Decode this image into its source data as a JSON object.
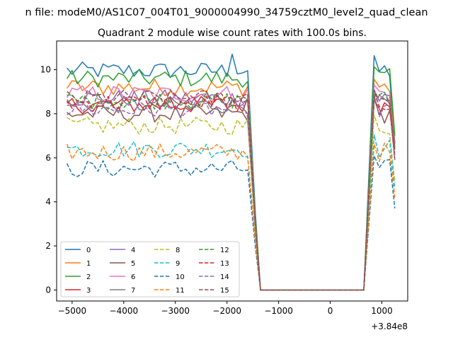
{
  "chart_data": {
    "type": "line",
    "suptitle": "n file: modeM0/AS1C07_004T01_9000004990_34759cztM0_level2_quad_clean",
    "title": "Quadrant 2 module wise count rates with 100.0s bins.",
    "xlabel": "",
    "ylabel": "",
    "x_offset_label": "+3.84e8",
    "xlim": [
      -5300,
      1500
    ],
    "ylim": [
      -0.5,
      11.3
    ],
    "x_ticks": [
      -5000,
      -4000,
      -3000,
      -2000,
      -1000,
      0,
      1000
    ],
    "x_tick_labels": [
      "−5000",
      "−4000",
      "−3000",
      "−2000",
      "−1000",
      "0",
      "1000"
    ],
    "y_ticks": [
      0,
      2,
      4,
      6,
      8,
      10
    ],
    "y_tick_labels": [
      "0",
      "2",
      "4",
      "6",
      "8",
      "10"
    ],
    "grid": false,
    "legend_position": "lower-left",
    "legend_columns": 4,
    "series": [
      {
        "name": "0",
        "color": "#1f77b4",
        "dashed": false,
        "level": 9.95,
        "end": 6.6,
        "peak": 10.7
      },
      {
        "name": "1",
        "color": "#ff7f0e",
        "dashed": false,
        "level": 9.2,
        "end": 6.7
      },
      {
        "name": "2",
        "color": "#2ca02c",
        "dashed": false,
        "level": 9.6,
        "end": 7.0
      },
      {
        "name": "3",
        "color": "#d62728",
        "dashed": false,
        "level": 8.4,
        "end": 5.9
      },
      {
        "name": "4",
        "color": "#9467bd",
        "dashed": false,
        "level": 8.7,
        "end": 6.4
      },
      {
        "name": "5",
        "color": "#8c564b",
        "dashed": false,
        "level": 8.0,
        "end": 6.7
      },
      {
        "name": "6",
        "color": "#e377c2",
        "dashed": false,
        "level": 8.9,
        "end": 6.6
      },
      {
        "name": "7",
        "color": "#7f7f7f",
        "dashed": false,
        "level": 8.4,
        "end": 6.5
      },
      {
        "name": "8",
        "color": "#bcbd22",
        "dashed": true,
        "level": 7.45,
        "end": 4.9
      },
      {
        "name": "9",
        "color": "#17becf",
        "dashed": true,
        "level": 6.4,
        "end": 4.6
      },
      {
        "name": "10",
        "color": "#1f77b4",
        "dashed": true,
        "level": 5.5,
        "end": 3.7
      },
      {
        "name": "11",
        "color": "#ff7f0e",
        "dashed": true,
        "level": 6.25,
        "end": 4.2
      },
      {
        "name": "12",
        "color": "#2ca02c",
        "dashed": true,
        "level": 8.6,
        "end": 6.3
      },
      {
        "name": "13",
        "color": "#d62728",
        "dashed": true,
        "level": 8.5,
        "end": 6.1
      },
      {
        "name": "14",
        "color": "#9467bd",
        "dashed": true,
        "level": 8.2,
        "end": 5.9
      },
      {
        "name": "15",
        "color": "#8c564b",
        "dashed": true,
        "level": 8.7,
        "end": 6.4
      }
    ],
    "segments": {
      "first_start": -5100,
      "first_end": -1550,
      "bin": 100,
      "drop_to_zero_at": -1350,
      "zero_until": 650,
      "second_start": 850,
      "second_end": 1250
    }
  }
}
